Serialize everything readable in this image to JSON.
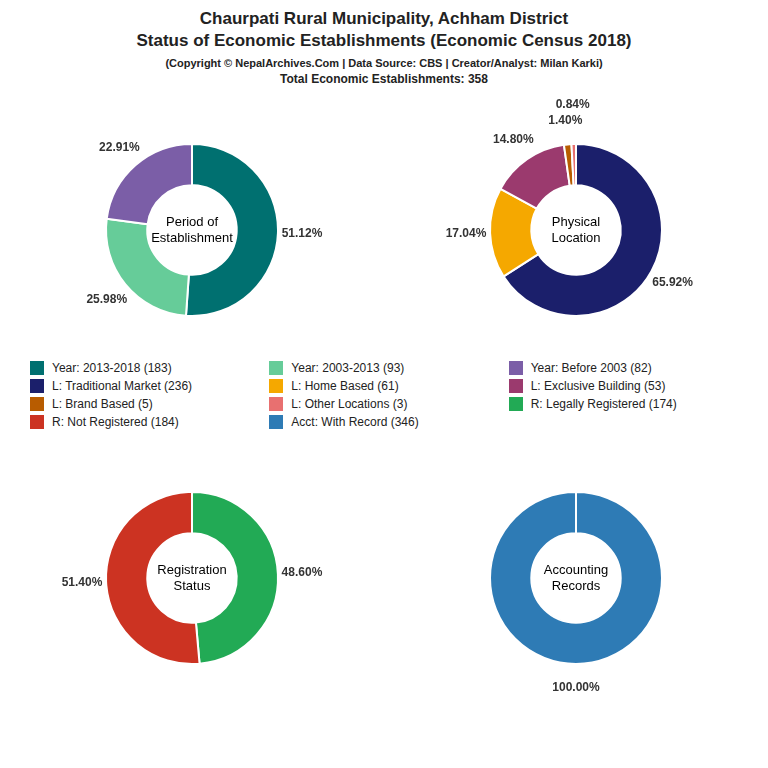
{
  "title": [
    "Chaurpati Rural Municipality, Achham District",
    "Status of Economic Establishments (Economic Census 2018)"
  ],
  "subtitle": [
    "(Copyright © NepalArchives.Com | Data Source: CBS | Creator/Analyst: Milan Karki)",
    "Total Economic Establishments: 358"
  ],
  "chart_data": [
    {
      "type": "doughnut",
      "title": "Period of\nEstablishment",
      "categories": [
        "Year: 2013-2018 (183)",
        "Year: 2003-2013 (93)",
        "Year: Before 2003 (82)"
      ],
      "values": [
        51.12,
        25.98,
        22.91
      ],
      "value_labels": [
        "51.12%",
        "25.98%",
        "22.91%"
      ],
      "colors": [
        "#007070",
        "#66CC99",
        "#7B5EA7"
      ],
      "data_labels": true
    },
    {
      "type": "doughnut",
      "title": "Physical\nLocation",
      "categories": [
        "L: Traditional Market (236)",
        "L: Home Based (61)",
        "L: Exclusive Building (53)",
        "L: Brand Based (5)",
        "L: Other Locations (3)"
      ],
      "values": [
        65.92,
        17.04,
        14.8,
        1.4,
        0.84
      ],
      "value_labels": [
        "65.92%",
        "17.04%",
        "14.80%",
        "1.40%",
        "0.84%"
      ],
      "colors": [
        "#1B1F6B",
        "#F5A800",
        "#9B3A6E",
        "#B85C00",
        "#E87070"
      ],
      "data_labels": true
    },
    {
      "type": "doughnut",
      "title": "Registration\nStatus",
      "categories": [
        "R: Legally Registered (174)",
        "R: Not Registered (184)"
      ],
      "values": [
        48.6,
        51.4
      ],
      "value_labels": [
        "48.60%",
        "51.40%"
      ],
      "colors": [
        "#22AA55",
        "#CC3322"
      ],
      "data_labels": true
    },
    {
      "type": "doughnut",
      "title": "Accounting\nRecords",
      "categories": [
        "Acct: With Record (346)"
      ],
      "values": [
        100.0
      ],
      "value_labels": [
        "100.00%"
      ],
      "colors": [
        "#2E7BB5"
      ],
      "data_labels": true
    }
  ]
}
